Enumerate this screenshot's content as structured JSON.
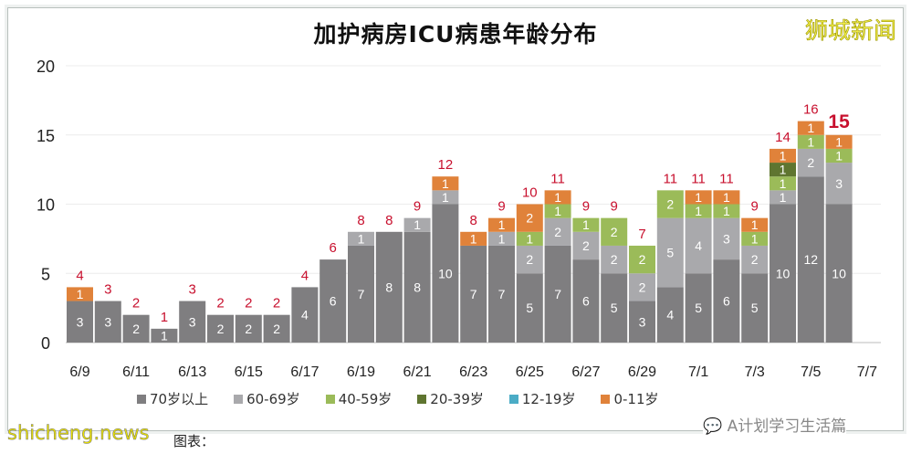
{
  "chart_data": {
    "type": "bar",
    "stacked": true,
    "title": "加护病房ICU病患年龄分布",
    "ylim": [
      0,
      20
    ],
    "yticks": [
      "0",
      "5",
      "10",
      "15",
      "20"
    ],
    "grid": true,
    "legend_position": "bottom",
    "categories": [
      "6/9",
      "6/10",
      "6/11",
      "6/12",
      "6/13",
      "6/14",
      "6/15",
      "6/16",
      "6/17",
      "6/18",
      "6/19",
      "6/20",
      "6/21",
      "6/22",
      "6/23",
      "6/24",
      "6/25",
      "6/26",
      "6/27",
      "6/28",
      "6/29",
      "6/30",
      "7/1",
      "7/2",
      "7/3",
      "7/4",
      "7/5",
      "7/6"
    ],
    "xtick_labels": [
      "6/9",
      "6/11",
      "6/13",
      "6/15",
      "6/17",
      "6/19",
      "6/21",
      "6/23",
      "6/25",
      "6/27",
      "6/29",
      "7/1",
      "7/3",
      "7/5",
      "7/7"
    ],
    "series": [
      {
        "name": "70岁以上",
        "color": "#7f7e80",
        "values": [
          3,
          3,
          2,
          1,
          3,
          2,
          2,
          2,
          4,
          6,
          7,
          8,
          8,
          10,
          7,
          7,
          5,
          7,
          6,
          5,
          3,
          4,
          5,
          6,
          5,
          10,
          12,
          10
        ]
      },
      {
        "name": "60-69岁",
        "color": "#a9a9ac",
        "values": [
          0,
          0,
          0,
          0,
          0,
          0,
          0,
          0,
          0,
          0,
          1,
          0,
          1,
          1,
          0,
          1,
          2,
          2,
          2,
          2,
          2,
          5,
          4,
          3,
          2,
          1,
          2,
          3
        ]
      },
      {
        "name": "40-59岁",
        "color": "#9bbb59",
        "values": [
          0,
          0,
          0,
          0,
          0,
          0,
          0,
          0,
          0,
          0,
          0,
          0,
          0,
          0,
          0,
          0,
          1,
          1,
          1,
          2,
          2,
          2,
          1,
          1,
          1,
          1,
          1,
          1
        ]
      },
      {
        "name": "20-39岁",
        "color": "#5f7530",
        "values": [
          0,
          0,
          0,
          0,
          0,
          0,
          0,
          0,
          0,
          0,
          0,
          0,
          0,
          0,
          0,
          0,
          0,
          0,
          0,
          0,
          0,
          0,
          0,
          0,
          0,
          1,
          0,
          0
        ]
      },
      {
        "name": "12-19岁",
        "color": "#4bacc6",
        "values": [
          0,
          0,
          0,
          0,
          0,
          0,
          0,
          0,
          0,
          0,
          0,
          0,
          0,
          0,
          0,
          0,
          0,
          0,
          0,
          0,
          0,
          0,
          0,
          0,
          0,
          0,
          0,
          0
        ]
      },
      {
        "name": "0-11岁",
        "color": "#e0823a",
        "values": [
          1,
          0,
          0,
          0,
          0,
          0,
          0,
          0,
          0,
          0,
          0,
          0,
          0,
          1,
          1,
          1,
          2,
          1,
          0,
          0,
          0,
          0,
          1,
          1,
          1,
          1,
          1,
          1
        ]
      }
    ],
    "totals": [
      4,
      3,
      2,
      1,
      3,
      2,
      2,
      2,
      4,
      6,
      8,
      8,
      9,
      12,
      8,
      9,
      10,
      11,
      9,
      9,
      7,
      11,
      11,
      11,
      9,
      14,
      16,
      15
    ],
    "total_label_color": "#c8102e"
  },
  "brand": "狮城新闻",
  "wechat_label": "A计划学习生活篇",
  "watermark": "shicheng.news",
  "source_label": "图表："
}
